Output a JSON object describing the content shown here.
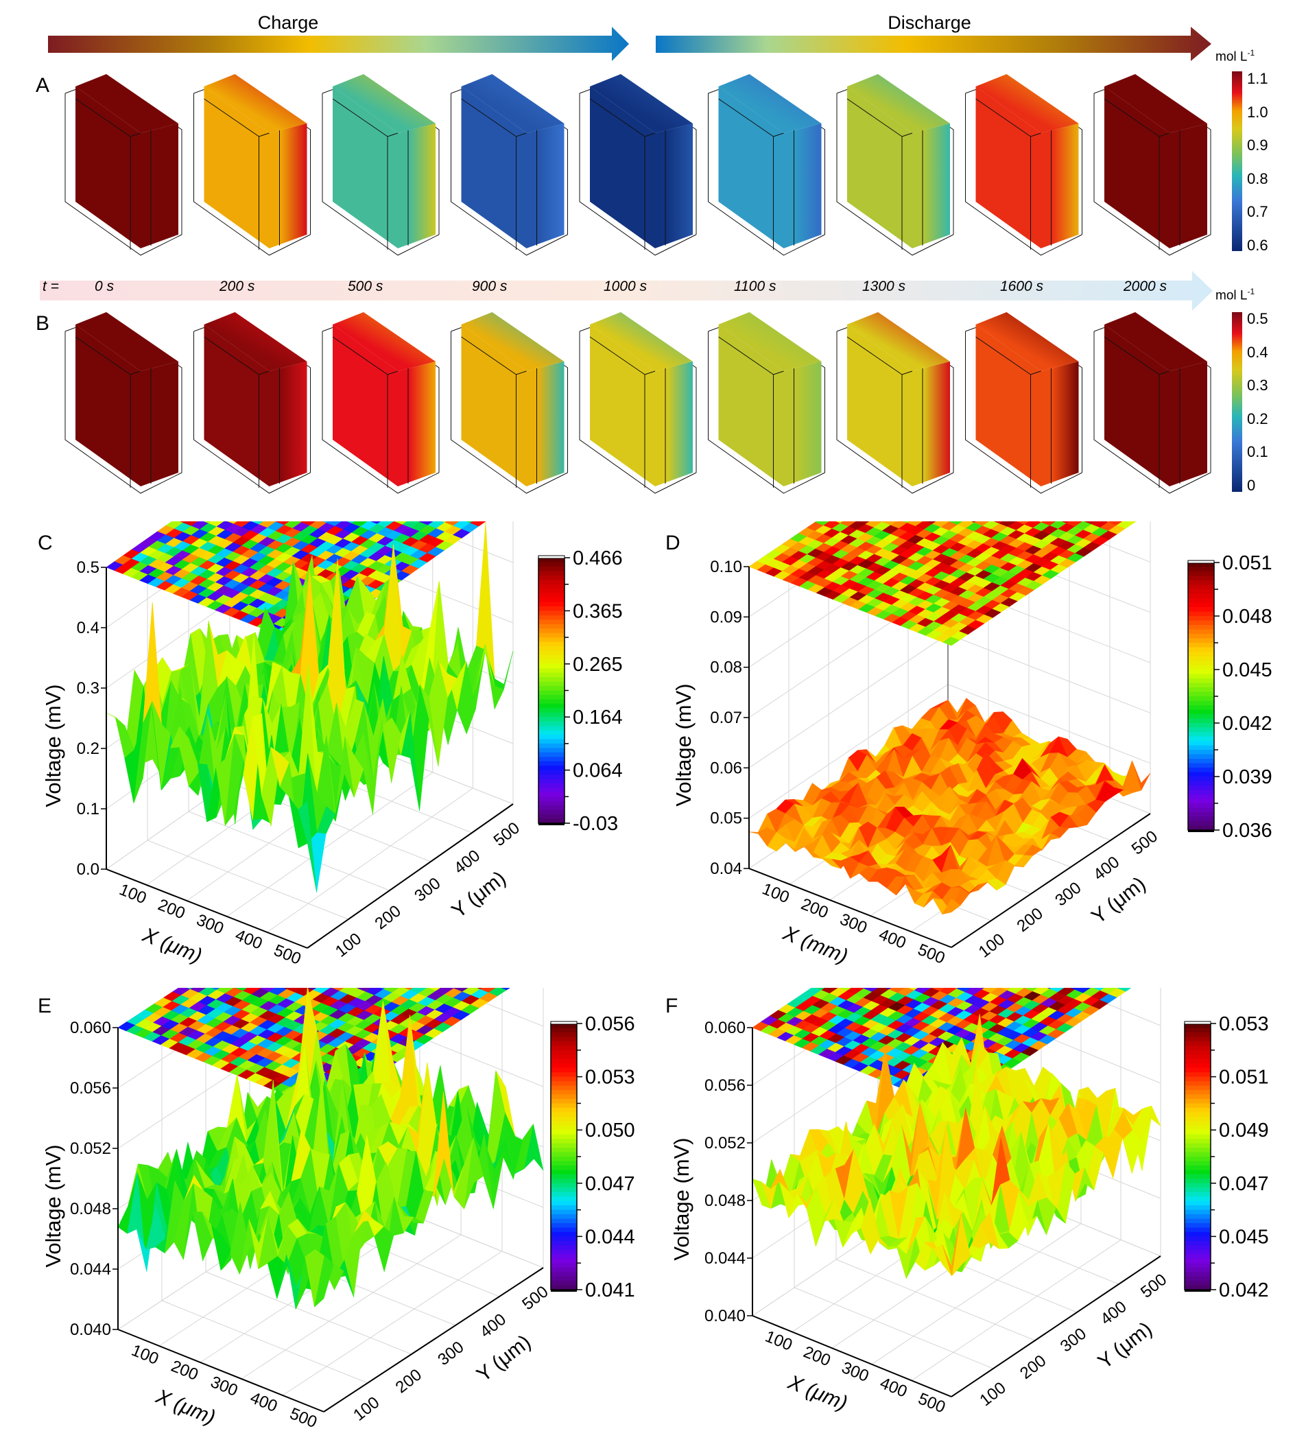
{
  "header": {
    "charge_label": "Charge",
    "discharge_label": "Discharge",
    "charge_gradient": [
      "#7e1c22",
      "#b07d0a",
      "#f2bd00",
      "#a9d690",
      "#0a76c5"
    ],
    "discharge_gradient": [
      "#0a76c5",
      "#a9d690",
      "#f2bd00",
      "#b07d0a",
      "#7e1c22"
    ]
  },
  "time_axis": {
    "prefix": "t =",
    "times": [
      "0 s",
      "200 s",
      "500 s",
      "900 s",
      "1000 s",
      "1100 s",
      "1300 s",
      "1600 s",
      "2000 s"
    ]
  },
  "chart_data": [
    {
      "panel": "A",
      "type": "heatmap",
      "title": "Concentration field snapshots during charge/discharge",
      "unit": "mol L-1",
      "colorbar": {
        "min": 0.6,
        "max": 1.1,
        "ticks": [
          "1.1",
          "1.0",
          "0.9",
          "0.8",
          "0.7",
          "0.6"
        ]
      },
      "snapshots": [
        {
          "t": "0 s",
          "bulk": 1.1,
          "edge": 1.1
        },
        {
          "t": "200 s",
          "bulk": 0.98,
          "edge": 1.05
        },
        {
          "t": "500 s",
          "bulk": 0.83,
          "edge": 0.93
        },
        {
          "t": "900 s",
          "bulk": 0.68,
          "edge": 0.73
        },
        {
          "t": "1000 s",
          "bulk": 0.62,
          "edge": 0.68
        },
        {
          "t": "1100 s",
          "bulk": 0.78,
          "edge": 0.72
        },
        {
          "t": "1300 s",
          "bulk": 0.91,
          "edge": 0.82
        },
        {
          "t": "1600 s",
          "bulk": 1.03,
          "edge": 0.97
        },
        {
          "t": "2000 s",
          "bulk": 1.1,
          "edge": 1.1
        }
      ]
    },
    {
      "panel": "B",
      "type": "heatmap",
      "title": "Concentration field snapshots during charge/discharge",
      "unit": "mol L-1",
      "colorbar": {
        "min": 0,
        "max": 0.5,
        "ticks": [
          "0.5",
          "0.4",
          "0.3",
          "0.2",
          "0.1",
          "0"
        ]
      },
      "snapshots": [
        {
          "t": "0 s",
          "bulk": 0.5,
          "edge": 0.5
        },
        {
          "t": "200 s",
          "bulk": 0.49,
          "edge": 0.45
        },
        {
          "t": "500 s",
          "bulk": 0.44,
          "edge": 0.38
        },
        {
          "t": "900 s",
          "bulk": 0.37,
          "edge": 0.22
        },
        {
          "t": "1000 s",
          "bulk": 0.34,
          "edge": 0.22
        },
        {
          "t": "1100 s",
          "bulk": 0.32,
          "edge": 0.28
        },
        {
          "t": "1300 s",
          "bulk": 0.34,
          "edge": 0.45
        },
        {
          "t": "1600 s",
          "bulk": 0.42,
          "edge": 0.5
        },
        {
          "t": "2000 s",
          "bulk": 0.5,
          "edge": 0.5
        }
      ]
    },
    {
      "panel": "C",
      "type": "surface",
      "xlabel": "X (μm)",
      "ylabel": "Y (μm)",
      "zlabel": "Voltage (mV)",
      "xticks": [
        "100",
        "200",
        "300",
        "400",
        "500"
      ],
      "yticks": [
        "100",
        "200",
        "300",
        "400",
        "500"
      ],
      "zticks": [
        "0.0",
        "0.1",
        "0.2",
        "0.3",
        "0.4",
        "0.5"
      ],
      "zlim": [
        0.0,
        0.5
      ],
      "colorbar": {
        "min": -0.03,
        "max": 0.466,
        "ticks": [
          "0.466",
          "0.365",
          "0.265",
          "0.164",
          "0.064",
          "-0.03"
        ]
      },
      "surface_range": [
        -0.03,
        0.466
      ],
      "typical": 0.22
    },
    {
      "panel": "D",
      "type": "surface",
      "xlabel": "X (mm)",
      "ylabel": "Y (μm)",
      "zlabel": "Voltage (mV)",
      "xticks": [
        "100",
        "200",
        "300",
        "400",
        "500"
      ],
      "yticks": [
        "100",
        "200",
        "300",
        "400",
        "500"
      ],
      "zticks": [
        "0.04",
        "0.05",
        "0.06",
        "0.07",
        "0.08",
        "0.09",
        "0.10"
      ],
      "zlim": [
        0.04,
        0.1
      ],
      "colorbar": {
        "min": 0.036,
        "max": 0.051,
        "ticks": [
          "0.051",
          "0.048",
          "0.045",
          "0.042",
          "0.039",
          "0.036"
        ]
      },
      "surface_range": [
        0.036,
        0.051
      ],
      "typical": 0.047
    },
    {
      "panel": "E",
      "type": "surface",
      "xlabel": "X (μm)",
      "ylabel": "Y (μm)",
      "zlabel": "Voltage (mV)",
      "xticks": [
        "100",
        "200",
        "300",
        "400",
        "500"
      ],
      "yticks": [
        "100",
        "200",
        "300",
        "400",
        "500"
      ],
      "zticks": [
        "0.040",
        "0.044",
        "0.048",
        "0.052",
        "0.056",
        "0.060"
      ],
      "zlim": [
        0.04,
        0.06
      ],
      "colorbar": {
        "min": 0.041,
        "max": 0.056,
        "ticks": [
          "0.056",
          "0.053",
          "0.050",
          "0.047",
          "0.044",
          "0.041"
        ]
      },
      "surface_range": [
        0.041,
        0.056
      ],
      "typical": 0.0485
    },
    {
      "panel": "F",
      "type": "surface",
      "xlabel": "X (μm)",
      "ylabel": "Y (μm)",
      "zlabel": "Voltage (mV)",
      "xticks": [
        "100",
        "200",
        "300",
        "400",
        "500"
      ],
      "yticks": [
        "100",
        "200",
        "300",
        "400",
        "500"
      ],
      "zticks": [
        "0.040",
        "0.044",
        "0.048",
        "0.052",
        "0.056",
        "0.060"
      ],
      "zlim": [
        0.04,
        0.06
      ],
      "colorbar": {
        "min": 0.042,
        "max": 0.053,
        "ticks": [
          "0.053",
          "0.051",
          "0.049",
          "0.047",
          "0.045",
          "0.042"
        ]
      },
      "surface_range": [
        0.042,
        0.053
      ],
      "typical": 0.0485
    }
  ]
}
